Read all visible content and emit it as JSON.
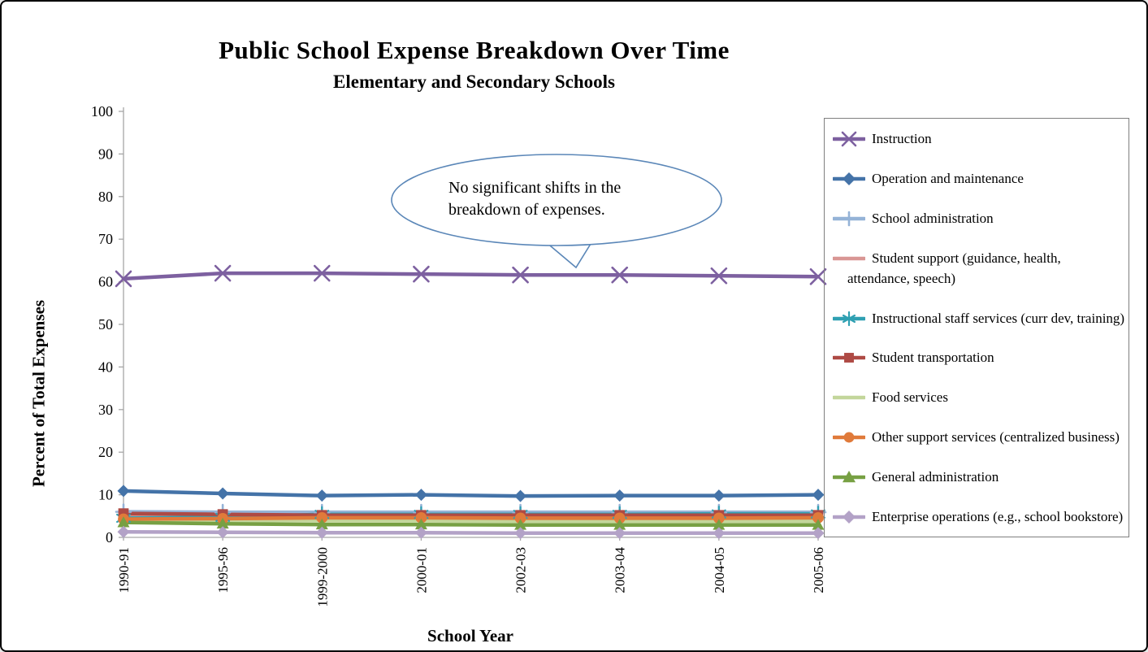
{
  "title": "Public School Expense Breakdown Over Time",
  "subtitle": "Elementary and Secondary Schools",
  "callout": {
    "text": "No significant shifts in the breakdown of expenses."
  },
  "colors": {
    "background": "#FFFFFF",
    "text": "#000000",
    "axis_line": "#A6A6A6",
    "legend_border": "#7F7F7F",
    "callout_border": "#5B87B8",
    "callout_fill": "#FFFFFF"
  },
  "chart_data": {
    "type": "line",
    "title": "Public School Expense Breakdown Over Time",
    "subtitle": "Elementary and Secondary Schools",
    "xlabel": "School Year",
    "ylabel": "Percent of Total Expenses",
    "ylim": [
      0,
      100
    ],
    "ytick_step": 10,
    "grid": false,
    "legend_position": "right",
    "annotation": "No significant shifts in the breakdown of expenses.",
    "categories": [
      "1990-91",
      "1995-96",
      "1999-2000",
      "2000-01",
      "2002-03",
      "2003-04",
      "2004-05",
      "2005-06"
    ],
    "series": [
      {
        "name": "Instruction",
        "color": "#7D60A0",
        "marker": "x",
        "values": [
          60.7,
          62.0,
          62.0,
          61.8,
          61.6,
          61.6,
          61.4,
          61.2
        ]
      },
      {
        "name": "Operation and maintenance",
        "color": "#4473A8",
        "marker": "diamond",
        "values": [
          10.9,
          10.3,
          9.8,
          10.0,
          9.7,
          9.8,
          9.8,
          10.0
        ]
      },
      {
        "name": "School administration",
        "color": "#95B3D7",
        "marker": "plus",
        "values": [
          6.0,
          5.9,
          5.9,
          5.9,
          5.9,
          5.9,
          5.9,
          5.9
        ]
      },
      {
        "name": "Student support (guidance, health, attendance, speech)",
        "color": "#D99694",
        "marker": "none",
        "values": [
          5.1,
          5.2,
          5.1,
          5.1,
          5.2,
          5.2,
          5.3,
          5.3
        ]
      },
      {
        "name": "Instructional staff services (curr dev, training)",
        "color": "#2FA0B2",
        "marker": "asterisk",
        "values": [
          4.5,
          4.7,
          5.4,
          5.4,
          5.4,
          5.4,
          5.5,
          5.5
        ]
      },
      {
        "name": "Student transportation",
        "color": "#AE4A44",
        "marker": "square",
        "values": [
          5.6,
          5.4,
          5.2,
          5.2,
          5.2,
          5.2,
          5.2,
          5.2
        ]
      },
      {
        "name": "Food services",
        "color": "#C3D69B",
        "marker": "none",
        "values": [
          4.1,
          4.0,
          3.9,
          3.9,
          3.8,
          3.8,
          3.8,
          3.8
        ]
      },
      {
        "name": "Other support services (centralized business)",
        "color": "#E07A3A",
        "marker": "circle",
        "values": [
          4.3,
          4.4,
          4.6,
          4.6,
          4.5,
          4.5,
          4.5,
          4.6
        ]
      },
      {
        "name": "General administration",
        "color": "#77A043",
        "marker": "triangle",
        "values": [
          3.5,
          3.2,
          3.0,
          3.0,
          2.9,
          2.9,
          2.9,
          2.9
        ]
      },
      {
        "name": "Enterprise operations (e.g., school bookstore)",
        "color": "#B3A2C7",
        "marker": "diamond",
        "values": [
          1.3,
          1.2,
          1.1,
          1.1,
          1.0,
          1.0,
          1.0,
          1.0
        ]
      }
    ]
  }
}
